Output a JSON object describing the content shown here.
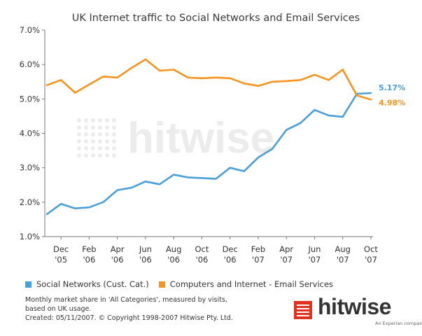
{
  "chart_data": {
    "type": "line",
    "title": "UK Internet traffic to Social Networks and Email Services",
    "xlabel": "",
    "ylabel": "",
    "ylim": [
      1.0,
      7.0
    ],
    "yticks": [
      "1.0%",
      "2.0%",
      "3.0%",
      "4.0%",
      "5.0%",
      "6.0%",
      "7.0%"
    ],
    "xtick_labels": [
      [
        "Dec",
        "'05"
      ],
      [
        "Feb",
        "'06"
      ],
      [
        "Apr",
        "'06"
      ],
      [
        "Jun",
        "'06"
      ],
      [
        "Aug",
        "'06"
      ],
      [
        "Oct",
        "'06"
      ],
      [
        "Dec",
        "'06"
      ],
      [
        "Feb",
        "'07"
      ],
      [
        "Apr",
        "'07"
      ],
      [
        "Jun",
        "'07"
      ],
      [
        "Aug",
        "'07"
      ],
      [
        "Oct",
        "'07"
      ]
    ],
    "series": [
      {
        "name": "Social Networks (Cust. Cat.)",
        "color": "#4a9fd8",
        "end_label": "5.17%",
        "values": [
          1.65,
          1.95,
          1.82,
          1.85,
          2.0,
          2.35,
          2.42,
          2.6,
          2.52,
          2.8,
          2.72,
          2.7,
          2.68,
          3.0,
          2.9,
          3.3,
          3.55,
          4.1,
          4.3,
          4.68,
          4.52,
          4.48,
          5.15,
          5.17
        ]
      },
      {
        "name": "Computers and Internet - Email Services",
        "color": "#f7931e",
        "end_label": "4.98%",
        "values": [
          5.4,
          5.55,
          5.18,
          5.42,
          5.65,
          5.62,
          5.9,
          6.15,
          5.82,
          5.85,
          5.62,
          5.6,
          5.62,
          5.6,
          5.45,
          5.38,
          5.5,
          5.52,
          5.55,
          5.7,
          5.55,
          5.85,
          5.1,
          4.98
        ]
      }
    ],
    "grid": false,
    "legend_position": "bottom",
    "watermark": "hitwise"
  },
  "note": {
    "line1": "Monthly market share in 'All Categories', measured by visits,",
    "line2": "based on UK usage.",
    "line3": "Created: 05/11/2007. © Copyright 1998-2007 Hitwise Pty. Ltd."
  },
  "logo": {
    "word": "hitwise",
    "sub": "An Experian company",
    "color_dark": "#333333",
    "color_red": "#e0301e"
  }
}
